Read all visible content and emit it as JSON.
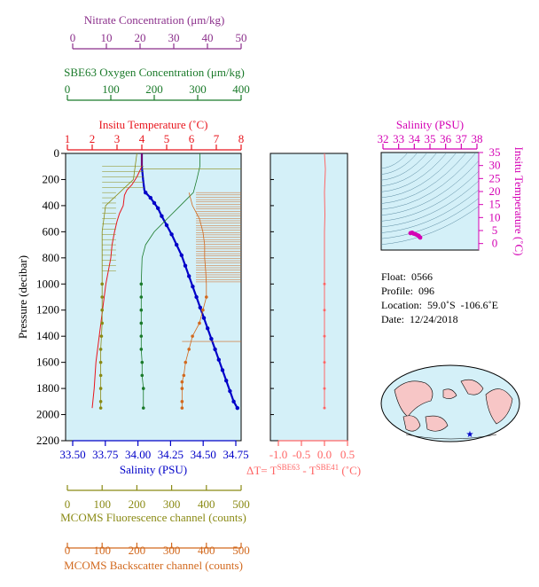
{
  "colors": {
    "nitrate": "#8b2f8b",
    "oxygen": "#1a7a2a",
    "temperature": "#e8141c",
    "salinity": "#0000c8",
    "fluorescence": "#8a8a14",
    "backscatter": "#d2691e",
    "delta": "#ff6666",
    "ts_pink": "#d400b4",
    "panel_bg": "#d4f0f8"
  },
  "axes": {
    "nitrate": {
      "label": "Nitrate Concentration (μm/kg)",
      "ticks": [
        "0",
        "10",
        "20",
        "30",
        "40",
        "50"
      ],
      "range": [
        0,
        50
      ]
    },
    "oxygen": {
      "label": "SBE63 Oxygen Concentration (μm/kg)",
      "ticks": [
        "0",
        "100",
        "200",
        "300",
        "400"
      ],
      "range": [
        0,
        400
      ]
    },
    "temperature": {
      "label": "Insitu Temperature (˚C)",
      "ticks": [
        "1",
        "2",
        "3",
        "4",
        "5",
        "6",
        "7",
        "8"
      ],
      "range": [
        1,
        8
      ]
    },
    "pressure": {
      "label": "Pressure (decibar)",
      "ticks": [
        "0",
        "200",
        "400",
        "600",
        "800",
        "1000",
        "1200",
        "1400",
        "1600",
        "1800",
        "2000",
        "2200"
      ],
      "range": [
        0,
        2200
      ]
    },
    "salinity": {
      "label": "Salinity (PSU)",
      "ticks": [
        "33.50",
        "33.75",
        "34.00",
        "34.25",
        "34.50",
        "34.75"
      ],
      "range": [
        33.5,
        34.75
      ]
    },
    "delta": {
      "label": "ΔT= T",
      "sup1": "SBE63",
      "mid": " - T",
      "sup2": "SBE41",
      "unit": " (˚C)",
      "ticks": [
        "-1.0",
        "-0.5",
        "0.0",
        "0.5"
      ],
      "range": [
        -1.0,
        0.5
      ]
    },
    "fluorescence": {
      "label": "MCOMS Fluorescence channel (counts)",
      "ticks": [
        "0",
        "100",
        "200",
        "300",
        "400",
        "500"
      ],
      "range": [
        0,
        500
      ]
    },
    "backscatter": {
      "label": "MCOMS Backscatter channel (counts)",
      "ticks": [
        "0",
        "100",
        "200",
        "300",
        "400",
        "500"
      ],
      "range": [
        0,
        500
      ]
    },
    "ts_salinity": {
      "label": "Salinity (PSU)",
      "ticks": [
        "32",
        "33",
        "34",
        "35",
        "36",
        "37",
        "38"
      ],
      "range": [
        32,
        38
      ]
    },
    "ts_temperature": {
      "label": "Insitu Temperature (˚C)",
      "ticks": [
        "0",
        "5",
        "10",
        "15",
        "20",
        "25",
        "30",
        "35"
      ],
      "range": [
        -2.5,
        35
      ]
    }
  },
  "info": {
    "float": "Float:  0566",
    "profile": "Profile:  096",
    "location": "Location:  59.0˚S  -106.6˚E",
    "date": "Date:  12/24/2018"
  },
  "chart_data": [
    {
      "type": "line",
      "name_axis": "temperature",
      "y_axis": "pressure",
      "x": [
        4.0,
        4.0,
        4.05,
        4.1,
        4.15,
        4.35,
        4.5,
        4.65,
        4.8,
        5.0,
        5.2,
        5.4,
        5.6,
        5.75,
        5.9,
        6.05,
        6.2,
        6.35,
        6.5,
        6.65,
        6.8,
        6.95,
        7.1,
        7.25,
        7.4,
        7.55,
        7.7,
        7.85
      ],
      "y": [
        0,
        100,
        200,
        280,
        300,
        340,
        380,
        420,
        480,
        550,
        620,
        700,
        780,
        860,
        940,
        1020,
        1100,
        1180,
        1260,
        1340,
        1420,
        1500,
        1580,
        1660,
        1740,
        1820,
        1900,
        1950
      ],
      "color": "salinity_dotted"
    },
    {
      "type": "line",
      "axis": "temperature",
      "x": [
        4.0,
        4.0,
        3.8,
        3.6,
        3.4,
        3.3,
        3.25,
        3.1,
        3.0,
        2.9,
        2.8,
        2.75,
        2.65,
        2.55,
        2.45,
        2.35,
        2.25,
        2.15,
        2.08,
        2.0
      ],
      "y": [
        0,
        100,
        180,
        240,
        280,
        320,
        400,
        460,
        520,
        600,
        700,
        800,
        900,
        1000,
        1150,
        1300,
        1450,
        1600,
        1800,
        1950
      ]
    },
    {
      "type": "scatter",
      "axis": "oxygen",
      "x": [
        305,
        305,
        298,
        290,
        260,
        230,
        200,
        180,
        172,
        170,
        170,
        170,
        170,
        170,
        170,
        172,
        172,
        175,
        175
      ],
      "y": [
        0,
        100,
        200,
        300,
        400,
        500,
        600,
        700,
        800,
        1000,
        1100,
        1200,
        1300,
        1400,
        1500,
        1600,
        1700,
        1800,
        1950
      ]
    },
    {
      "type": "scatter",
      "axis": "fluorescence",
      "x": [
        200,
        190,
        150,
        110,
        100,
        100,
        100,
        100,
        100,
        100,
        98,
        96,
        96,
        96,
        96,
        96,
        96
      ],
      "y": [
        0,
        200,
        300,
        400,
        600,
        800,
        1000,
        1100,
        1200,
        1300,
        1400,
        1500,
        1600,
        1700,
        1800,
        1900,
        1950
      ]
    },
    {
      "type": "line",
      "axis": "backscatter",
      "x": [
        350,
        360,
        380,
        390,
        395,
        395,
        398,
        400,
        400,
        390,
        380,
        360,
        350,
        340,
        335,
        330,
        330,
        330,
        330
      ],
      "y": [
        300,
        400,
        500,
        600,
        700,
        800,
        900,
        1000,
        1100,
        1200,
        1300,
        1400,
        1500,
        1600,
        1700,
        1750,
        1800,
        1900,
        1950
      ]
    },
    {
      "type": "line",
      "axis": "delta",
      "x": [
        0.0,
        0.02,
        0.0,
        0.01,
        0.0,
        0.0,
        0.0,
        0.0,
        0.0,
        0.0,
        0.0,
        0.0
      ],
      "y": [
        0,
        120,
        300,
        470,
        600,
        800,
        1000,
        1200,
        1400,
        1600,
        1800,
        1950
      ]
    },
    {
      "type": "scatter",
      "axis": "ts",
      "x": [
        33.8,
        33.9,
        34.0,
        34.1,
        34.2,
        34.3,
        34.35,
        34.4
      ],
      "y": [
        4.0,
        4.2,
        3.8,
        3.6,
        3.3,
        3.0,
        2.6,
        2.3
      ]
    }
  ]
}
